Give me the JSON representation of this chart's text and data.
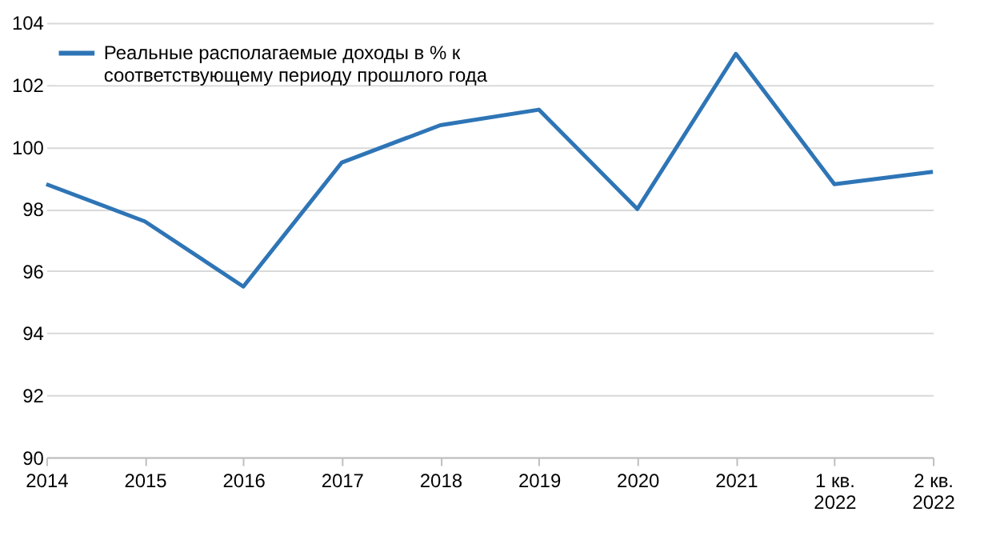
{
  "chart_data": {
    "type": "line",
    "categories": [
      "2014",
      "2015",
      "2016",
      "2017",
      "2018",
      "2019",
      "2020",
      "2021",
      "1 кв.\n2022",
      "2 кв.\n2022"
    ],
    "series": [
      {
        "name": "Реальные располагаемые доходы в % к\nсоответствующему периоду прошлого года",
        "color": "#2e75b6",
        "values": [
          98.8,
          97.6,
          95.5,
          99.5,
          100.7,
          101.2,
          98.0,
          103.0,
          98.8,
          99.2
        ]
      }
    ],
    "ylim": [
      90,
      104
    ],
    "yticks": [
      90,
      92,
      94,
      96,
      98,
      100,
      102,
      104
    ],
    "grid": "y",
    "legend": "top left",
    "marker": "none",
    "line_style": "solid"
  }
}
